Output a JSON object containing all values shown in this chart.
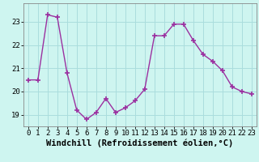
{
  "x": [
    0,
    1,
    2,
    3,
    4,
    5,
    6,
    7,
    8,
    9,
    10,
    11,
    12,
    13,
    14,
    15,
    16,
    17,
    18,
    19,
    20,
    21,
    22,
    23
  ],
  "y": [
    20.5,
    20.5,
    23.3,
    23.2,
    20.8,
    19.2,
    18.8,
    19.1,
    19.7,
    19.1,
    19.3,
    19.6,
    20.1,
    22.4,
    22.4,
    22.9,
    22.9,
    22.2,
    21.6,
    21.3,
    20.9,
    20.2,
    20.0,
    19.9
  ],
  "line_color": "#9b30a0",
  "marker": "+",
  "marker_size": 5,
  "bg_color": "#cef5f0",
  "grid_color": "#aadddd",
  "xlabel": "Windchill (Refroidissement éolien,°C)",
  "ylim": [
    18.5,
    23.8
  ],
  "xlim": [
    -0.5,
    23.5
  ],
  "yticks": [
    19,
    20,
    21,
    22,
    23
  ],
  "xticks": [
    0,
    1,
    2,
    3,
    4,
    5,
    6,
    7,
    8,
    9,
    10,
    11,
    12,
    13,
    14,
    15,
    16,
    17,
    18,
    19,
    20,
    21,
    22,
    23
  ],
  "xlabel_fontsize": 7.5,
  "tick_fontsize": 6.5
}
